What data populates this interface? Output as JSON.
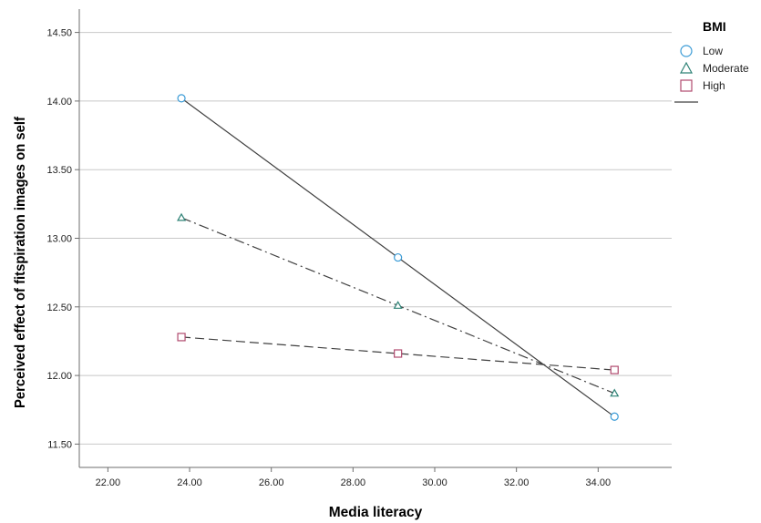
{
  "chart_data": {
    "type": "line",
    "xlabel": "Media literacy",
    "ylabel": "Perceived effect of fitspiration images on self",
    "xlim": [
      21.3,
      35.8
    ],
    "ylim": [
      11.33,
      14.67
    ],
    "x_ticks": [
      "22.00",
      "24.00",
      "26.00",
      "28.00",
      "30.00",
      "32.00",
      "34.00"
    ],
    "y_ticks": [
      "11.50",
      "12.00",
      "12.50",
      "13.00",
      "13.50",
      "14.00",
      "14.50"
    ],
    "grid": "horizontal",
    "legend": {
      "title": "BMI",
      "position": "top-right"
    },
    "series": [
      {
        "name": "Low",
        "marker": "circle",
        "color": "#3a9bd6",
        "line_style": "solid",
        "line_color": "#404040",
        "x": [
          23.8,
          29.1,
          34.4
        ],
        "y": [
          14.02,
          12.86,
          11.7
        ]
      },
      {
        "name": "Moderate",
        "marker": "triangle",
        "color": "#2e8276",
        "line_style": "dash-dot",
        "line_color": "#404040",
        "x": [
          23.8,
          29.1,
          34.4
        ],
        "y": [
          13.15,
          12.51,
          11.87
        ]
      },
      {
        "name": "High",
        "marker": "square",
        "color": "#b04a6e",
        "line_style": "dashed",
        "line_color": "#404040",
        "x": [
          23.8,
          29.1,
          34.4
        ],
        "y": [
          12.28,
          12.16,
          12.04
        ]
      }
    ]
  }
}
